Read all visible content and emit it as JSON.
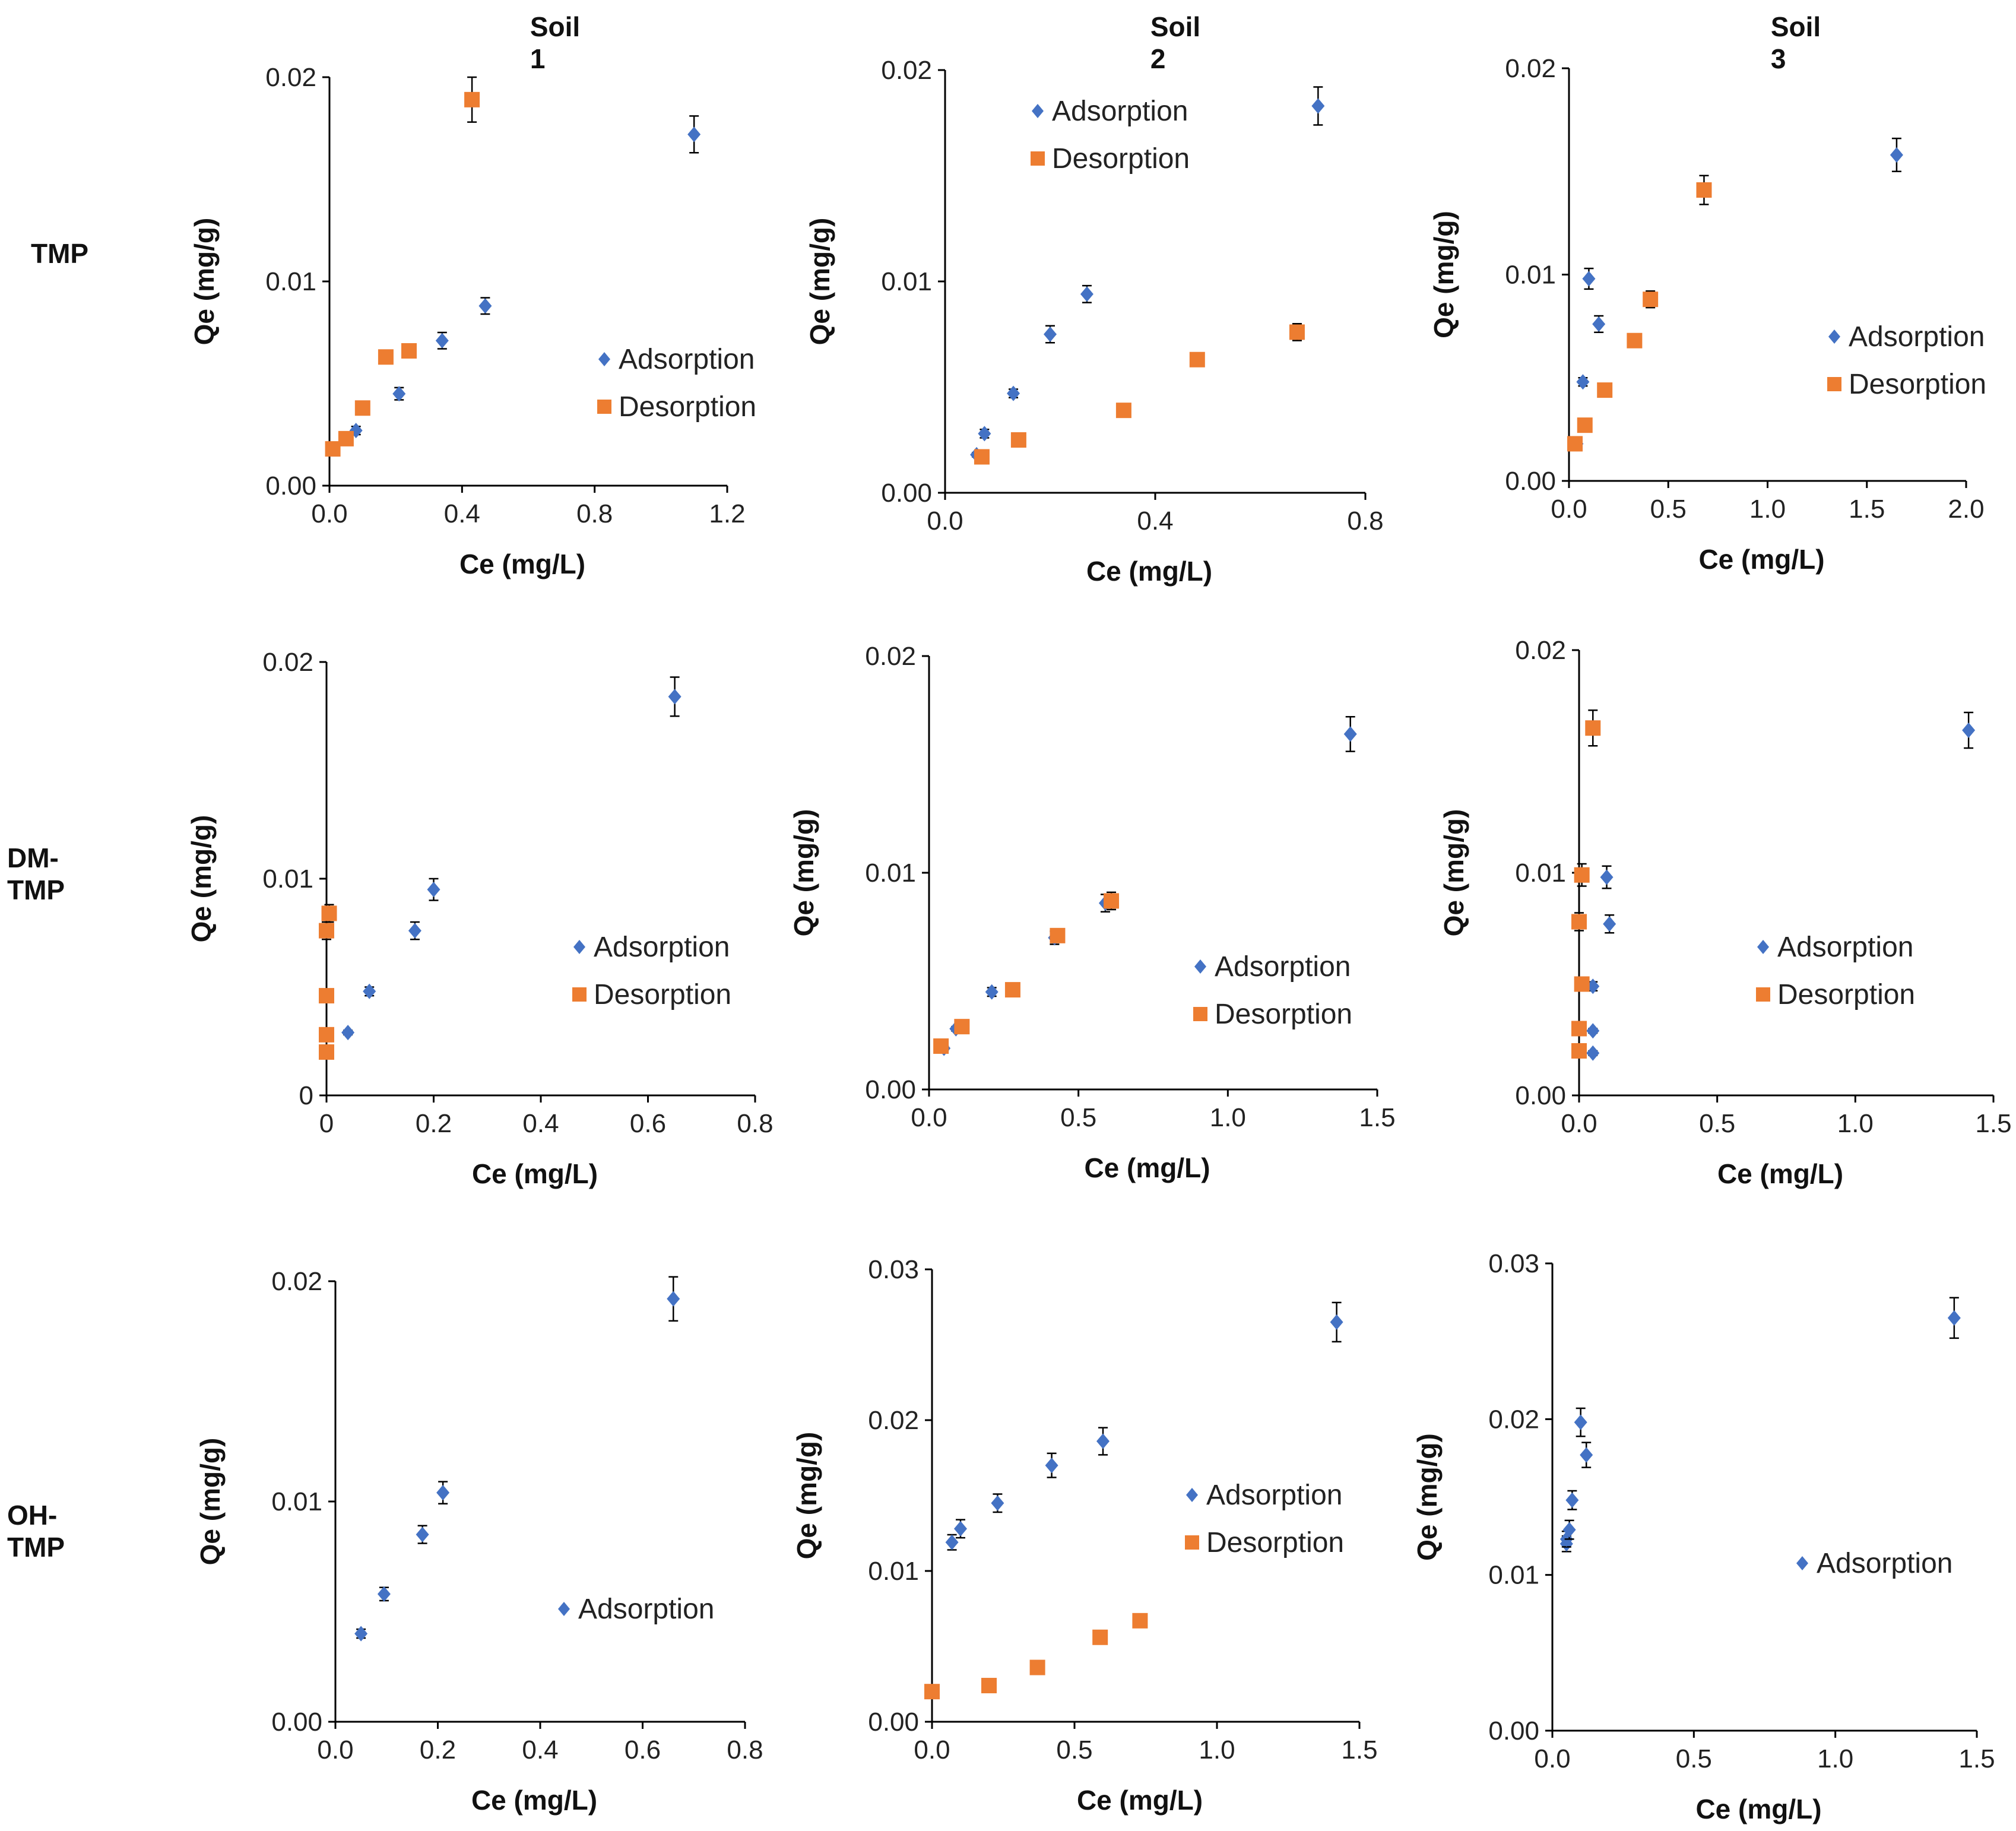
{
  "figure": {
    "column_titles": [
      "Soil 1",
      "Soil 2",
      "Soil 3"
    ],
    "row_labels": [
      "TMP",
      "DM-TMP",
      "OH-TMP"
    ],
    "colors": {
      "adsorption": "#4472C4",
      "desorption": "#ED7D31",
      "axis": "#000000",
      "text": "#222222"
    }
  },
  "chart_data": [
    {
      "id": "tmp-soil1",
      "type": "scatter",
      "row": "TMP",
      "column": "Soil 1",
      "xlabel": "Ce (mg/L)",
      "ylabel": "Qe (mg/g)",
      "xlim": [
        0,
        1.2
      ],
      "ylim": [
        0,
        0.02
      ],
      "xticks": [
        0,
        0.4,
        0.8,
        1.2
      ],
      "xtick_labels": [
        "0.0",
        "0.4",
        "0.8",
        "1.2"
      ],
      "yticks": [
        0,
        0.01,
        0.02
      ],
      "ytick_labels": [
        "0.00",
        "0.01",
        "0.02"
      ],
      "legend": {
        "position": "right"
      },
      "series": [
        {
          "name": "Adsorption",
          "marker": "diamond",
          "points": [
            {
              "x": 0.08,
              "y": 0.0027,
              "err": 0.0002
            },
            {
              "x": 0.21,
              "y": 0.0045,
              "err": 0.0003
            },
            {
              "x": 0.34,
              "y": 0.0071,
              "err": 0.0004
            },
            {
              "x": 0.47,
              "y": 0.0088,
              "err": 0.0004
            },
            {
              "x": 1.1,
              "y": 0.0172,
              "err": 0.0009
            }
          ]
        },
        {
          "name": "Desorption",
          "marker": "square",
          "points": [
            {
              "x": 0.01,
              "y": 0.0018,
              "err": 0.0001
            },
            {
              "x": 0.05,
              "y": 0.0023,
              "err": 0.0001
            },
            {
              "x": 0.1,
              "y": 0.0038,
              "err": 0.0002
            },
            {
              "x": 0.17,
              "y": 0.0063,
              "err": 0.0003
            },
            {
              "x": 0.24,
              "y": 0.0066,
              "err": 0.0003
            },
            {
              "x": 0.43,
              "y": 0.0189,
              "err": 0.0011
            }
          ]
        }
      ]
    },
    {
      "id": "tmp-soil2",
      "type": "scatter",
      "row": "TMP",
      "column": "Soil 2",
      "xlabel": "Ce (mg/L)",
      "ylabel": "Qe (mg/g)",
      "xlim": [
        0,
        0.8
      ],
      "ylim": [
        0,
        0.02
      ],
      "xticks": [
        0,
        0.4,
        0.8
      ],
      "xtick_labels": [
        "0.0",
        "0.4",
        "0.8"
      ],
      "yticks": [
        0,
        0.01,
        0.02
      ],
      "ytick_labels": [
        "0.00",
        "0.01",
        "0.02"
      ],
      "legend": {
        "position": "top"
      },
      "series": [
        {
          "name": "Adsorption",
          "marker": "diamond",
          "points": [
            {
              "x": 0.06,
              "y": 0.0018,
              "err": 0.0001
            },
            {
              "x": 0.075,
              "y": 0.0028,
              "err": 0.0002
            },
            {
              "x": 0.13,
              "y": 0.0047,
              "err": 0.0002
            },
            {
              "x": 0.2,
              "y": 0.0075,
              "err": 0.0004
            },
            {
              "x": 0.27,
              "y": 0.0094,
              "err": 0.0004
            },
            {
              "x": 0.71,
              "y": 0.0183,
              "err": 0.0009
            }
          ]
        },
        {
          "name": "Desorption",
          "marker": "square",
          "points": [
            {
              "x": 0.07,
              "y": 0.0017,
              "err": 0.0001
            },
            {
              "x": 0.14,
              "y": 0.0025,
              "err": 0.0001
            },
            {
              "x": 0.34,
              "y": 0.0039,
              "err": 0.0002
            },
            {
              "x": 0.48,
              "y": 0.0063,
              "err": 0.0003
            },
            {
              "x": 0.67,
              "y": 0.0076,
              "err": 0.0004
            }
          ]
        }
      ]
    },
    {
      "id": "tmp-soil3",
      "type": "scatter",
      "row": "TMP",
      "column": "Soil 3",
      "xlabel": "Ce (mg/L)",
      "ylabel": "Qe (mg/g)",
      "xlim": [
        0,
        2.0
      ],
      "ylim": [
        0,
        0.02
      ],
      "xticks": [
        0,
        0.5,
        1.0,
        1.5,
        2.0
      ],
      "xtick_labels": [
        "0.0",
        "0.5",
        "1.0",
        "1.5",
        "2.0"
      ],
      "yticks": [
        0,
        0.01,
        0.02
      ],
      "ytick_labels": [
        "0.00",
        "0.01",
        "0.02"
      ],
      "legend": {
        "position": "right"
      },
      "series": [
        {
          "name": "Adsorption",
          "marker": "diamond",
          "points": [
            {
              "x": 0.04,
              "y": 0.0018,
              "err": 0.0001
            },
            {
              "x": 0.07,
              "y": 0.0048,
              "err": 0.0002
            },
            {
              "x": 0.1,
              "y": 0.0098,
              "err": 0.0005
            },
            {
              "x": 0.15,
              "y": 0.0076,
              "err": 0.0004
            },
            {
              "x": 1.65,
              "y": 0.0158,
              "err": 0.0008
            }
          ]
        },
        {
          "name": "Desorption",
          "marker": "square",
          "points": [
            {
              "x": 0.03,
              "y": 0.0018,
              "err": 0.0001
            },
            {
              "x": 0.08,
              "y": 0.0027,
              "err": 0.0001
            },
            {
              "x": 0.18,
              "y": 0.0044,
              "err": 0.0002
            },
            {
              "x": 0.33,
              "y": 0.0068,
              "err": 0.0003
            },
            {
              "x": 0.41,
              "y": 0.0088,
              "err": 0.0004
            },
            {
              "x": 0.68,
              "y": 0.0141,
              "err": 0.0007
            }
          ]
        }
      ]
    },
    {
      "id": "dmtmp-soil1",
      "type": "scatter",
      "row": "DM-TMP",
      "column": "Soil 1",
      "xlabel": "Ce (mg/L)",
      "ylabel": "Qe (mg/g)",
      "xlim": [
        0,
        0.8
      ],
      "ylim": [
        0,
        0.02
      ],
      "xticks": [
        0,
        0.2,
        0.4,
        0.6,
        0.8
      ],
      "xtick_labels": [
        "0",
        "0.2",
        "0.4",
        "0.6",
        "0.8"
      ],
      "yticks": [
        0,
        0.01,
        0.02
      ],
      "ytick_labels": [
        "0",
        "0.01",
        "0.02"
      ],
      "legend": {
        "position": "right"
      },
      "series": [
        {
          "name": "Adsorption",
          "marker": "diamond",
          "points": [
            {
              "x": 0.04,
              "y": 0.0029,
              "err": 0.0001
            },
            {
              "x": 0.08,
              "y": 0.0048,
              "err": 0.0002
            },
            {
              "x": 0.165,
              "y": 0.0076,
              "err": 0.0004
            },
            {
              "x": 0.2,
              "y": 0.0095,
              "err": 0.0005
            },
            {
              "x": 0.65,
              "y": 0.0184,
              "err": 0.0009
            }
          ]
        },
        {
          "name": "Desorption",
          "marker": "square",
          "points": [
            {
              "x": 0.0,
              "y": 0.002,
              "err": 0.0001
            },
            {
              "x": 0.0,
              "y": 0.0028,
              "err": 0.0001
            },
            {
              "x": 0.0,
              "y": 0.0046,
              "err": 0.0002
            },
            {
              "x": 0.0,
              "y": 0.0076,
              "err": 0.0004
            },
            {
              "x": 0.005,
              "y": 0.0084,
              "err": 0.0004
            }
          ]
        }
      ]
    },
    {
      "id": "dmtmp-soil2",
      "type": "scatter",
      "row": "DM-TMP",
      "column": "Soil 2",
      "xlabel": "Ce (mg/L)",
      "ylabel": "Qe (mg/g)",
      "xlim": [
        0,
        1.5
      ],
      "ylim": [
        0,
        0.02
      ],
      "xticks": [
        0,
        0.5,
        1.0,
        1.5
      ],
      "xtick_labels": [
        "0.0",
        "0.5",
        "1.0",
        "1.5"
      ],
      "yticks": [
        0,
        0.01,
        0.02
      ],
      "ytick_labels": [
        "0.00",
        "0.01",
        "0.02"
      ],
      "legend": {
        "position": "right"
      },
      "series": [
        {
          "name": "Adsorption",
          "marker": "diamond",
          "points": [
            {
              "x": 0.05,
              "y": 0.0019,
              "err": 0.0001
            },
            {
              "x": 0.09,
              "y": 0.0028,
              "err": 0.0001
            },
            {
              "x": 0.21,
              "y": 0.0045,
              "err": 0.0002
            },
            {
              "x": 0.42,
              "y": 0.007,
              "err": 0.0003
            },
            {
              "x": 0.59,
              "y": 0.0086,
              "err": 0.0004
            },
            {
              "x": 1.41,
              "y": 0.0164,
              "err": 0.0008
            }
          ]
        },
        {
          "name": "Desorption",
          "marker": "square",
          "points": [
            {
              "x": 0.04,
              "y": 0.002,
              "err": 0.0001
            },
            {
              "x": 0.11,
              "y": 0.0029,
              "err": 0.0001
            },
            {
              "x": 0.28,
              "y": 0.0046,
              "err": 0.0002
            },
            {
              "x": 0.43,
              "y": 0.0071,
              "err": 0.0003
            },
            {
              "x": 0.61,
              "y": 0.0087,
              "err": 0.0004
            }
          ]
        }
      ]
    },
    {
      "id": "dmtmp-soil3",
      "type": "scatter",
      "row": "DM-TMP",
      "column": "Soil 3",
      "xlabel": "Ce (mg/L)",
      "ylabel": "Qe (mg/g)",
      "xlim": [
        0,
        1.5
      ],
      "ylim": [
        0,
        0.02
      ],
      "xticks": [
        0,
        0.5,
        1.0,
        1.5
      ],
      "xtick_labels": [
        "0.0",
        "0.5",
        "1.0",
        "1.5"
      ],
      "yticks": [
        0,
        0.01,
        0.02
      ],
      "ytick_labels": [
        "0.00",
        "0.01",
        "0.02"
      ],
      "legend": {
        "position": "right"
      },
      "series": [
        {
          "name": "Adsorption",
          "marker": "diamond",
          "points": [
            {
              "x": 0.05,
              "y": 0.0019,
              "err": 0.0001
            },
            {
              "x": 0.05,
              "y": 0.0029,
              "err": 0.0001
            },
            {
              "x": 0.05,
              "y": 0.0049,
              "err": 0.0002
            },
            {
              "x": 0.1,
              "y": 0.0098,
              "err": 0.0005
            },
            {
              "x": 0.11,
              "y": 0.0077,
              "err": 0.0004
            },
            {
              "x": 1.41,
              "y": 0.0164,
              "err": 0.0008
            }
          ]
        },
        {
          "name": "Desorption",
          "marker": "square",
          "points": [
            {
              "x": 0.0,
              "y": 0.002,
              "err": 0.0001
            },
            {
              "x": 0.0,
              "y": 0.003,
              "err": 0.0001
            },
            {
              "x": 0.01,
              "y": 0.005,
              "err": 0.0002
            },
            {
              "x": 0.0,
              "y": 0.0078,
              "err": 0.0004
            },
            {
              "x": 0.01,
              "y": 0.0099,
              "err": 0.0005
            },
            {
              "x": 0.05,
              "y": 0.0165,
              "err": 0.0008
            }
          ]
        }
      ]
    },
    {
      "id": "ohtmp-soil1",
      "type": "scatter",
      "row": "OH-TMP",
      "column": "Soil 1",
      "xlabel": "Ce (mg/L)",
      "ylabel": "Qe (mg/g)",
      "xlim": [
        0,
        0.8
      ],
      "ylim": [
        0,
        0.02
      ],
      "xticks": [
        0,
        0.2,
        0.4,
        0.6,
        0.8
      ],
      "xtick_labels": [
        "0.0",
        "0.2",
        "0.4",
        "0.6",
        "0.8"
      ],
      "yticks": [
        0,
        0.01,
        0.02
      ],
      "ytick_labels": [
        "0.00",
        "0.01",
        "0.02"
      ],
      "legend": {
        "position": "right"
      },
      "series": [
        {
          "name": "Adsorption",
          "marker": "diamond",
          "points": [
            {
              "x": 0.05,
              "y": 0.004,
              "err": 0.0002
            },
            {
              "x": 0.095,
              "y": 0.0058,
              "err": 0.0003
            },
            {
              "x": 0.17,
              "y": 0.0085,
              "err": 0.0004
            },
            {
              "x": 0.21,
              "y": 0.0104,
              "err": 0.0005
            },
            {
              "x": 0.66,
              "y": 0.0192,
              "err": 0.001
            }
          ]
        }
      ]
    },
    {
      "id": "ohtmp-soil2",
      "type": "scatter",
      "row": "OH-TMP",
      "column": "Soil 2",
      "xlabel": "Ce (mg/L)",
      "ylabel": "Qe (mg/g)",
      "xlim": [
        0,
        1.5
      ],
      "ylim": [
        0,
        0.03
      ],
      "xticks": [
        0,
        0.5,
        1.0,
        1.5
      ],
      "xtick_labels": [
        "0.0",
        "0.5",
        "1.0",
        "1.5"
      ],
      "yticks": [
        0,
        0.01,
        0.02,
        0.03
      ],
      "ytick_labels": [
        "0.00",
        "0.01",
        "0.02",
        "0.03"
      ],
      "legend": {
        "position": "right"
      },
      "series": [
        {
          "name": "Adsorption",
          "marker": "diamond",
          "points": [
            {
              "x": 0.07,
              "y": 0.0119,
              "err": 0.0005
            },
            {
              "x": 0.1,
              "y": 0.0128,
              "err": 0.0006
            },
            {
              "x": 0.23,
              "y": 0.0145,
              "err": 0.0006
            },
            {
              "x": 0.42,
              "y": 0.017,
              "err": 0.0008
            },
            {
              "x": 0.6,
              "y": 0.0186,
              "err": 0.0009
            },
            {
              "x": 1.42,
              "y": 0.0265,
              "err": 0.0013
            }
          ]
        },
        {
          "name": "Desorption",
          "marker": "square",
          "points": [
            {
              "x": 0.0,
              "y": 0.002,
              "err": 0.0001
            },
            {
              "x": 0.2,
              "y": 0.0024,
              "err": 0.0001
            },
            {
              "x": 0.37,
              "y": 0.0036,
              "err": 0.0002
            },
            {
              "x": 0.59,
              "y": 0.0056,
              "err": 0.0003
            },
            {
              "x": 0.73,
              "y": 0.0067,
              "err": 0.0003
            }
          ]
        }
      ]
    },
    {
      "id": "ohtmp-soil3",
      "type": "scatter",
      "row": "OH-TMP",
      "column": "Soil 3",
      "xlabel": "Ce (mg/L)",
      "ylabel": "Qe (mg/g)",
      "xlim": [
        0,
        1.5
      ],
      "ylim": [
        0,
        0.03
      ],
      "xticks": [
        0,
        0.5,
        1.0,
        1.5
      ],
      "xtick_labels": [
        "0.0",
        "0.5",
        "1.0",
        "1.5"
      ],
      "yticks": [
        0,
        0.01,
        0.02,
        0.03
      ],
      "ytick_labels": [
        "0.00",
        "0.01",
        "0.02",
        "0.03"
      ],
      "legend": {
        "position": "right"
      },
      "series": [
        {
          "name": "Adsorption",
          "marker": "diamond",
          "points": [
            {
              "x": 0.05,
              "y": 0.012,
              "err": 0.0005
            },
            {
              "x": 0.05,
              "y": 0.0123,
              "err": 0.0005
            },
            {
              "x": 0.06,
              "y": 0.0129,
              "err": 0.0006
            },
            {
              "x": 0.07,
              "y": 0.0148,
              "err": 0.0006
            },
            {
              "x": 0.1,
              "y": 0.0198,
              "err": 0.0009
            },
            {
              "x": 0.12,
              "y": 0.0177,
              "err": 0.0008
            },
            {
              "x": 1.42,
              "y": 0.0265,
              "err": 0.0013
            }
          ]
        }
      ]
    }
  ]
}
